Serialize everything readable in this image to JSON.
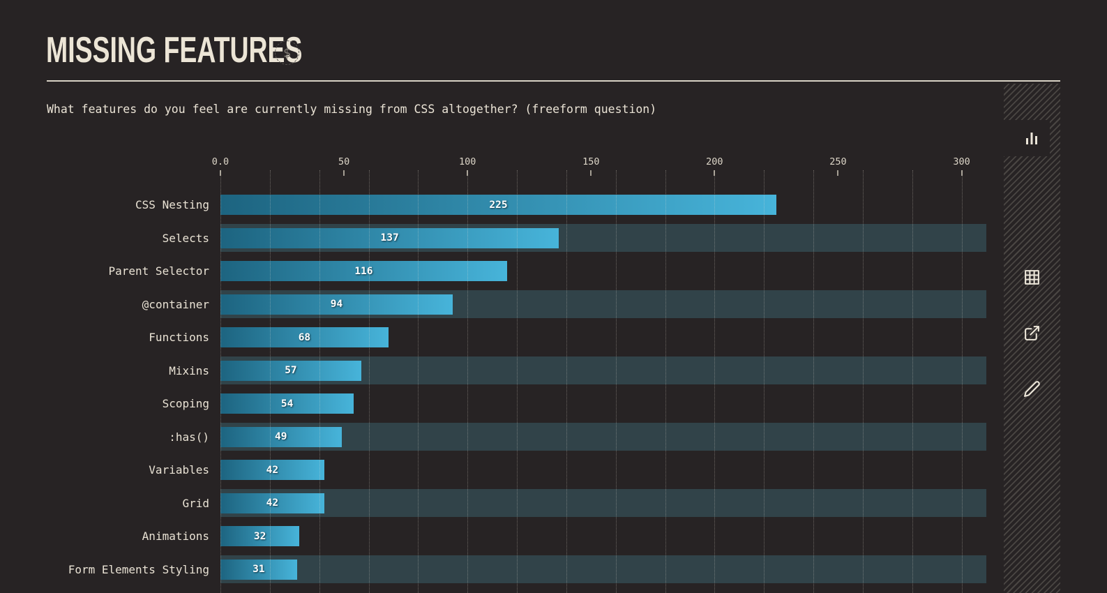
{
  "header": {
    "title": "MISSING FEATURES",
    "badge_symbol": "$"
  },
  "question": "What features do you feel are currently missing from CSS altogether? (freeform question)",
  "chart_data": {
    "type": "bar",
    "orientation": "horizontal",
    "title": "MISSING FEATURES",
    "question": "What features do you feel are currently missing from CSS altogether? (freeform question)",
    "categories": [
      "CSS Nesting",
      "Selects",
      "Parent Selector",
      "@container",
      "Functions",
      "Mixins",
      "Scoping",
      ":has()",
      "Variables",
      "Grid",
      "Animations",
      "Form Elements Styling"
    ],
    "values": [
      225,
      137,
      116,
      94,
      68,
      57,
      54,
      49,
      42,
      42,
      32,
      31
    ],
    "x_tick_labels": [
      "0.0",
      "50",
      "100",
      "150",
      "200",
      "250",
      "300"
    ],
    "x_tick_values": [
      0,
      50,
      100,
      150,
      200,
      250,
      300
    ],
    "xlim": [
      0,
      310
    ],
    "gridline_step": 20,
    "axis_position": "top",
    "grid": "dotted-vertical",
    "striped_row_indexes": [
      1,
      3,
      5,
      7,
      9,
      11
    ],
    "colors": {
      "background": "#272324",
      "bar_gradient_start": "#1d6480",
      "bar_gradient_end": "#47b4da",
      "row_stripe": "#314349",
      "text_cream": "#eae3d5",
      "value_label": "#ffffff"
    }
  },
  "toolbar": {
    "icons": [
      {
        "name": "bar-chart-view",
        "active": true
      },
      {
        "name": "table-view",
        "active": false
      },
      {
        "name": "share-export",
        "active": false
      },
      {
        "name": "edit-customize",
        "active": false
      }
    ]
  }
}
